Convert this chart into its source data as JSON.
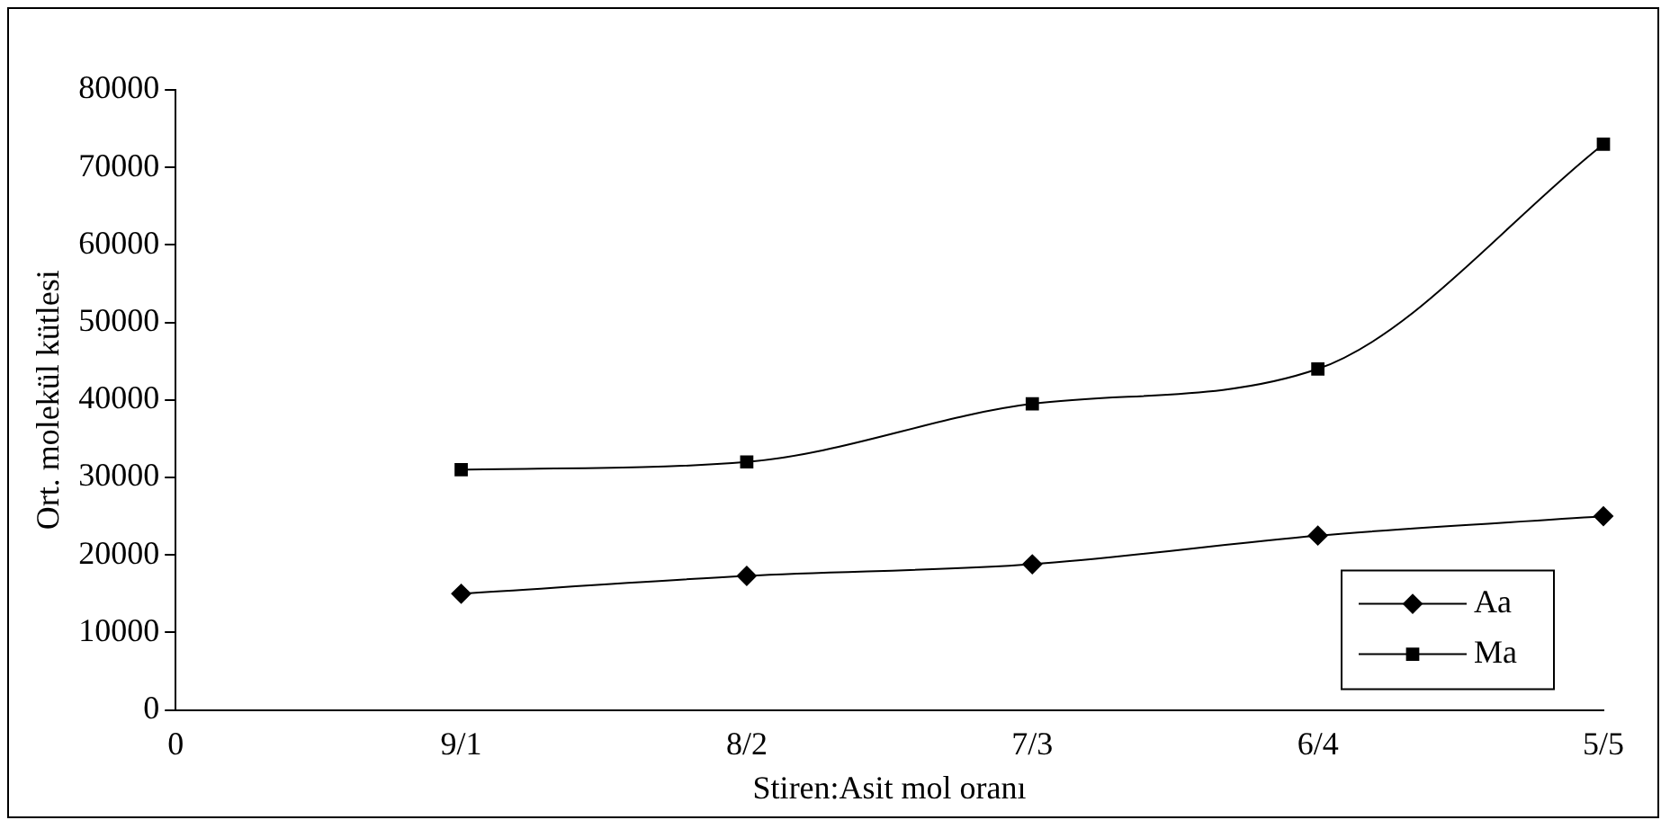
{
  "chart_data": {
    "type": "line",
    "xlabel": "Stiren:Asit mol oranı",
    "ylabel": "Ort. molekül kütlesi",
    "categories": [
      "0",
      "9/1",
      "8/2",
      "7/3",
      "6/4",
      "5/5"
    ],
    "series": [
      {
        "name": "Aa",
        "color": "#000000",
        "marker": "diamond",
        "values": [
          null,
          15000,
          17300,
          18800,
          22500,
          25000
        ]
      },
      {
        "name": "Ma",
        "color": "#000000",
        "marker": "square",
        "values": [
          null,
          31000,
          32000,
          39500,
          44000,
          73000
        ]
      }
    ],
    "ylim": [
      0,
      80000
    ],
    "yticks": [
      0,
      10000,
      20000,
      30000,
      40000,
      50000,
      60000,
      70000,
      80000
    ],
    "grid": false,
    "legend": "bottom right",
    "line_style": "solid"
  }
}
